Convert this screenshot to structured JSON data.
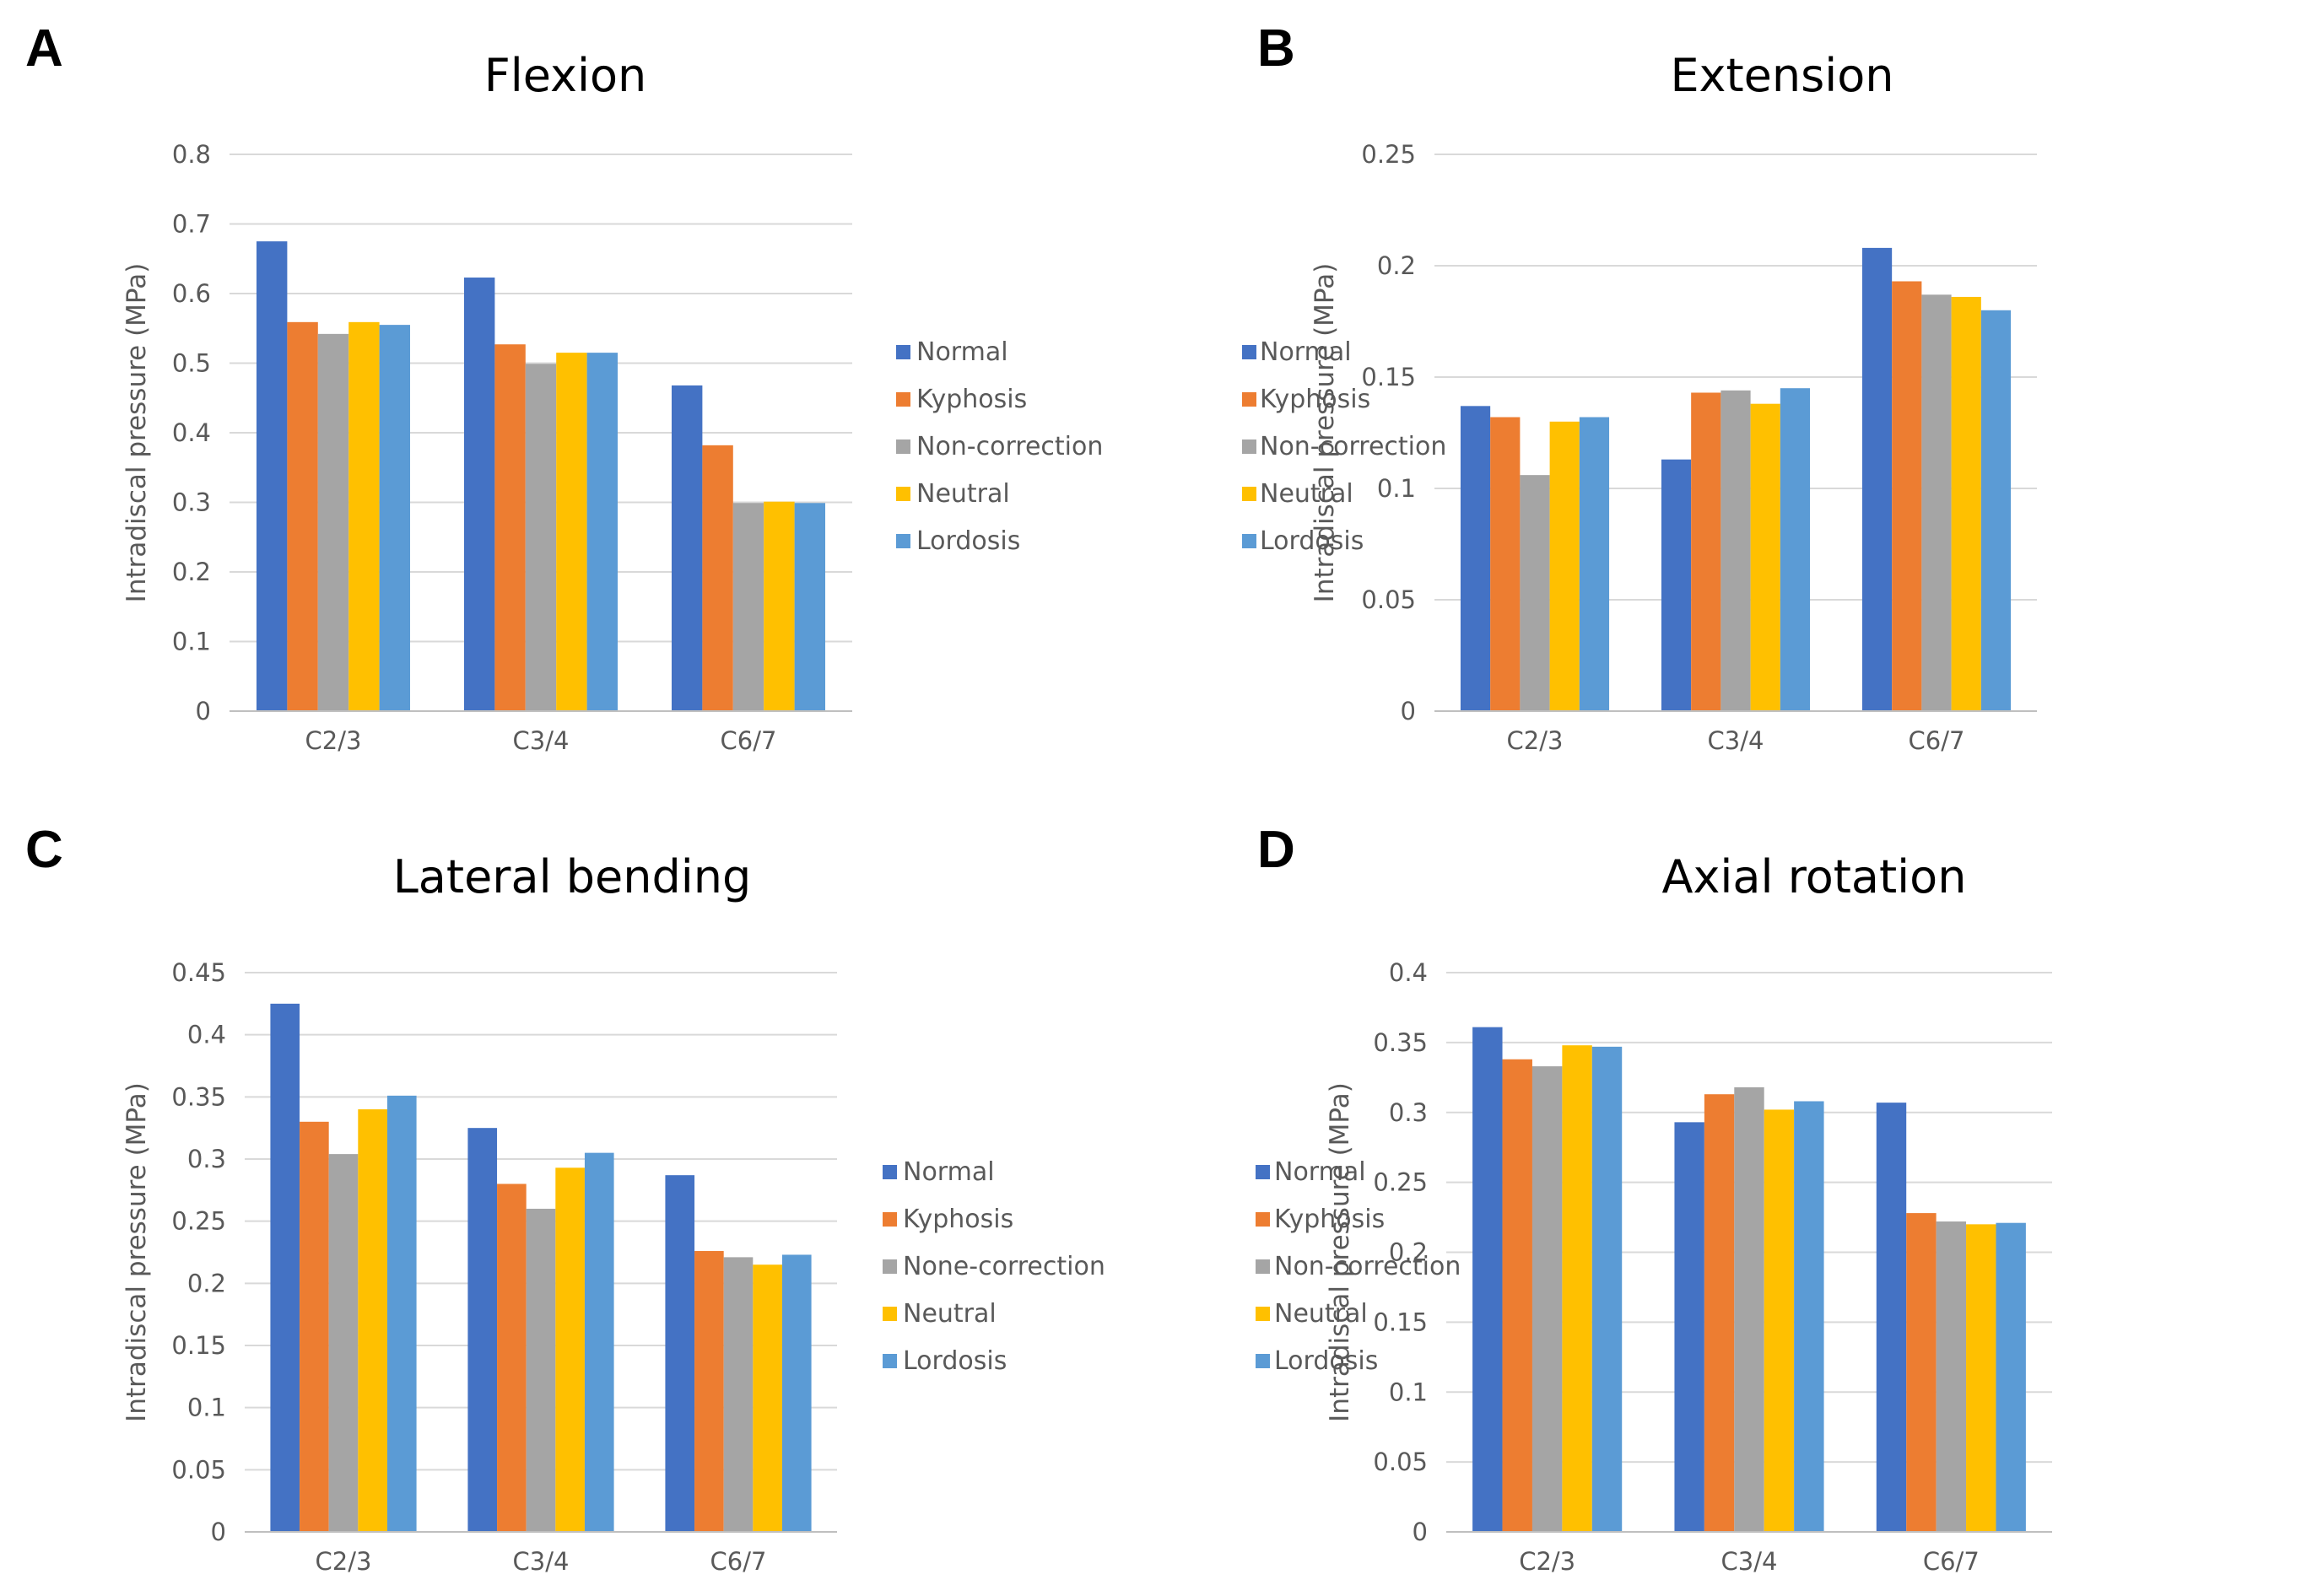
{
  "colors": {
    "Normal": "#4472C4",
    "Kyphosis": "#ED7D31",
    "Non-correction": "#A5A5A5",
    "None-correction": "#A5A5A5",
    "Neutral": "#FFC000",
    "Lordosis": "#5B9BD5"
  },
  "chart_data": [
    {
      "panel": "A",
      "type": "bar",
      "title": "Flexion",
      "xlabel": "",
      "ylabel": "Intradiscal pressure (MPa)",
      "categories": [
        "C2/3",
        "C3/4",
        "C6/7"
      ],
      "ylim": [
        0,
        0.8
      ],
      "yticks": [
        "0",
        "0.1",
        "0.2",
        "0.3",
        "0.4",
        "0.5",
        "0.6",
        "0.7",
        "0.8"
      ],
      "grid": true,
      "legend_position": "right",
      "series": [
        {
          "name": "Normal",
          "values": [
            0.675,
            0.623,
            0.468
          ]
        },
        {
          "name": "Kyphosis",
          "values": [
            0.559,
            0.527,
            0.382
          ]
        },
        {
          "name": "Non-correction",
          "values": [
            0.542,
            0.499,
            0.299
          ]
        },
        {
          "name": "Neutral",
          "values": [
            0.559,
            0.515,
            0.301
          ]
        },
        {
          "name": "Lordosis",
          "values": [
            0.555,
            0.515,
            0.299
          ]
        }
      ]
    },
    {
      "panel": "B",
      "type": "bar",
      "title": "Extension",
      "xlabel": "",
      "ylabel": "Intradiscal pressure (MPa)",
      "categories": [
        "C2/3",
        "C3/4",
        "C6/7"
      ],
      "ylim": [
        0,
        0.25
      ],
      "yticks": [
        "0",
        "0.05",
        "0.1",
        "0.15",
        "0.2",
        "0.25"
      ],
      "grid": true,
      "legend_position": "right",
      "series": [
        {
          "name": "Normal",
          "values": [
            0.137,
            0.113,
            0.208
          ]
        },
        {
          "name": "Kyphosis",
          "values": [
            0.132,
            0.143,
            0.193
          ]
        },
        {
          "name": "Non-correction",
          "values": [
            0.106,
            0.144,
            0.187
          ]
        },
        {
          "name": "Neutral",
          "values": [
            0.13,
            0.138,
            0.186
          ]
        },
        {
          "name": "Lordosis",
          "values": [
            0.132,
            0.145,
            0.18
          ]
        }
      ]
    },
    {
      "panel": "C",
      "type": "bar",
      "title": "Lateral bending",
      "xlabel": "",
      "ylabel": "Intradiscal pressure (MPa)",
      "categories": [
        "C2/3",
        "C3/4",
        "C6/7"
      ],
      "ylim": [
        0,
        0.45
      ],
      "yticks": [
        "0",
        "0.05",
        "0.1",
        "0.15",
        "0.2",
        "0.25",
        "0.3",
        "0.35",
        "0.4",
        "0.45"
      ],
      "grid": true,
      "legend_position": "right",
      "series": [
        {
          "name": "Normal",
          "values": [
            0.425,
            0.325,
            0.287
          ]
        },
        {
          "name": "Kyphosis",
          "values": [
            0.33,
            0.28,
            0.226
          ]
        },
        {
          "name": "None-correction",
          "values": [
            0.304,
            0.26,
            0.221
          ]
        },
        {
          "name": "Neutral",
          "values": [
            0.34,
            0.293,
            0.215
          ]
        },
        {
          "name": "Lordosis",
          "values": [
            0.351,
            0.305,
            0.223
          ]
        }
      ]
    },
    {
      "panel": "D",
      "type": "bar",
      "title": "Axial rotation",
      "xlabel": "",
      "ylabel": "Intradiscal pressure (MPa)",
      "categories": [
        "C2/3",
        "C3/4",
        "C6/7"
      ],
      "ylim": [
        0,
        0.4
      ],
      "yticks": [
        "0",
        "0.05",
        "0.1",
        "0.15",
        "0.2",
        "0.25",
        "0.3",
        "0.35",
        "0.4"
      ],
      "grid": true,
      "legend_position": "right",
      "series": [
        {
          "name": "Normal",
          "values": [
            0.361,
            0.293,
            0.307
          ]
        },
        {
          "name": "Kyphosis",
          "values": [
            0.338,
            0.313,
            0.228
          ]
        },
        {
          "name": "Non-correction",
          "values": [
            0.333,
            0.318,
            0.222
          ]
        },
        {
          "name": "Neutral",
          "values": [
            0.348,
            0.302,
            0.22
          ]
        },
        {
          "name": "Lordosis",
          "values": [
            0.347,
            0.308,
            0.221
          ]
        }
      ]
    }
  ]
}
